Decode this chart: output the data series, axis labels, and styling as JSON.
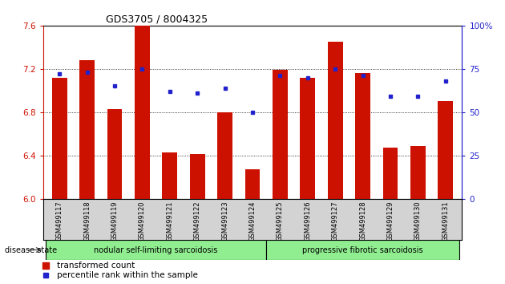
{
  "title": "GDS3705 / 8004325",
  "samples": [
    "GSM499117",
    "GSM499118",
    "GSM499119",
    "GSM499120",
    "GSM499121",
    "GSM499122",
    "GSM499123",
    "GSM499124",
    "GSM499125",
    "GSM499126",
    "GSM499127",
    "GSM499128",
    "GSM499129",
    "GSM499130",
    "GSM499131"
  ],
  "transformed_count": [
    7.12,
    7.28,
    6.83,
    7.6,
    6.43,
    6.41,
    6.8,
    6.27,
    7.19,
    7.12,
    7.45,
    7.16,
    6.47,
    6.49,
    6.9
  ],
  "percentile_rank": [
    72,
    73,
    65,
    75,
    62,
    61,
    64,
    50,
    71,
    70,
    75,
    71,
    59,
    59,
    68
  ],
  "bar_color": "#cc1100",
  "marker_color": "#2222cc",
  "ylim_left": [
    6.0,
    7.6
  ],
  "ylim_right": [
    0,
    100
  ],
  "yticks_left": [
    6.0,
    6.4,
    6.8,
    7.2,
    7.6
  ],
  "yticks_right": [
    0,
    25,
    50,
    75,
    100
  ],
  "ytick_labels_right": [
    "0",
    "25",
    "50",
    "75",
    "100%"
  ],
  "group1_label": "nodular self-limiting sarcoidosis",
  "group2_label": "progressive fibrotic sarcoidosis",
  "group1_count": 8,
  "group2_count": 7,
  "legend_bar": "transformed count",
  "legend_marker": "percentile rank within the sample",
  "disease_state_label": "disease state",
  "group_color": "#90ee90",
  "bar_width": 0.55
}
